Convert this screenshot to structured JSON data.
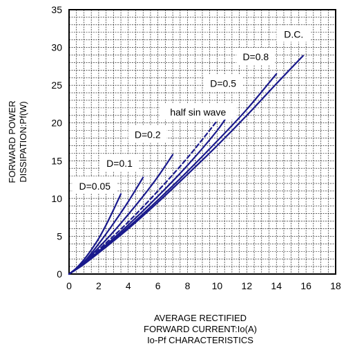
{
  "chart_data": {
    "type": "line",
    "title": "",
    "xlabel": [
      "AVERAGE RECTIFIED",
      "FORWARD CURRENT:Io(A)"
    ],
    "ylabel": [
      "FORWARD POWER",
      "DISSIPATION:Pf(W)"
    ],
    "caption": "Io-Pf CHARACTERISTICS",
    "xlim": [
      0,
      18
    ],
    "ylim": [
      0,
      35
    ],
    "x_ticks": [
      0,
      2,
      4,
      6,
      8,
      10,
      12,
      14,
      16,
      18
    ],
    "y_ticks": [
      0,
      5,
      10,
      15,
      20,
      25,
      30,
      35
    ],
    "grid": true,
    "line_color": "#1a1a8c",
    "series": [
      {
        "name": "D=0.05",
        "style": "solid",
        "x": [
          0,
          0.5,
          1,
          1.5,
          2,
          2.5,
          3,
          3.5
        ],
        "y": [
          0,
          0.8,
          1.9,
          3.2,
          4.7,
          6.5,
          8.5,
          10.6
        ]
      },
      {
        "name": "D=0.1",
        "style": "solid",
        "x": [
          0,
          1,
          2,
          3,
          4,
          5
        ],
        "y": [
          0,
          1.6,
          4.0,
          6.7,
          9.6,
          12.8
        ]
      },
      {
        "name": "D=0.2",
        "style": "solid",
        "x": [
          0,
          1,
          2,
          3,
          4,
          5,
          6,
          7
        ],
        "y": [
          0,
          1.5,
          3.5,
          5.6,
          7.9,
          10.3,
          12.9,
          15.8
        ]
      },
      {
        "name": "half sin wave",
        "style": "dashed",
        "x": [
          0,
          1,
          2,
          4,
          6,
          8,
          10
        ],
        "y": [
          0,
          1.4,
          3.2,
          6.9,
          11.0,
          15.4,
          20.3
        ]
      },
      {
        "name": "D=0.5",
        "style": "solid",
        "x": [
          0,
          1,
          2,
          4,
          6,
          8,
          10,
          11
        ],
        "y": [
          0,
          1.4,
          3.0,
          6.5,
          10.3,
          14.4,
          19.0,
          21.9
        ]
      },
      {
        "name": "D=0.8",
        "style": "solid",
        "x": [
          0,
          1,
          2,
          4,
          6,
          8,
          10,
          12,
          14
        ],
        "y": [
          0,
          1.3,
          2.9,
          6.2,
          9.8,
          13.6,
          17.6,
          21.8,
          26.5
        ]
      },
      {
        "name": "D.C.",
        "style": "solid",
        "x": [
          0,
          1,
          2,
          4,
          6,
          8,
          10,
          12,
          14,
          15.8
        ],
        "y": [
          0,
          1.3,
          2.8,
          6.0,
          9.5,
          13.2,
          17.0,
          21.0,
          25.2,
          28.9
        ]
      }
    ],
    "labels": [
      "D=0.05",
      "D=0.1",
      "D=0.2",
      "half sin wave",
      "D=0.5",
      "D=0.8",
      "D.C."
    ]
  }
}
